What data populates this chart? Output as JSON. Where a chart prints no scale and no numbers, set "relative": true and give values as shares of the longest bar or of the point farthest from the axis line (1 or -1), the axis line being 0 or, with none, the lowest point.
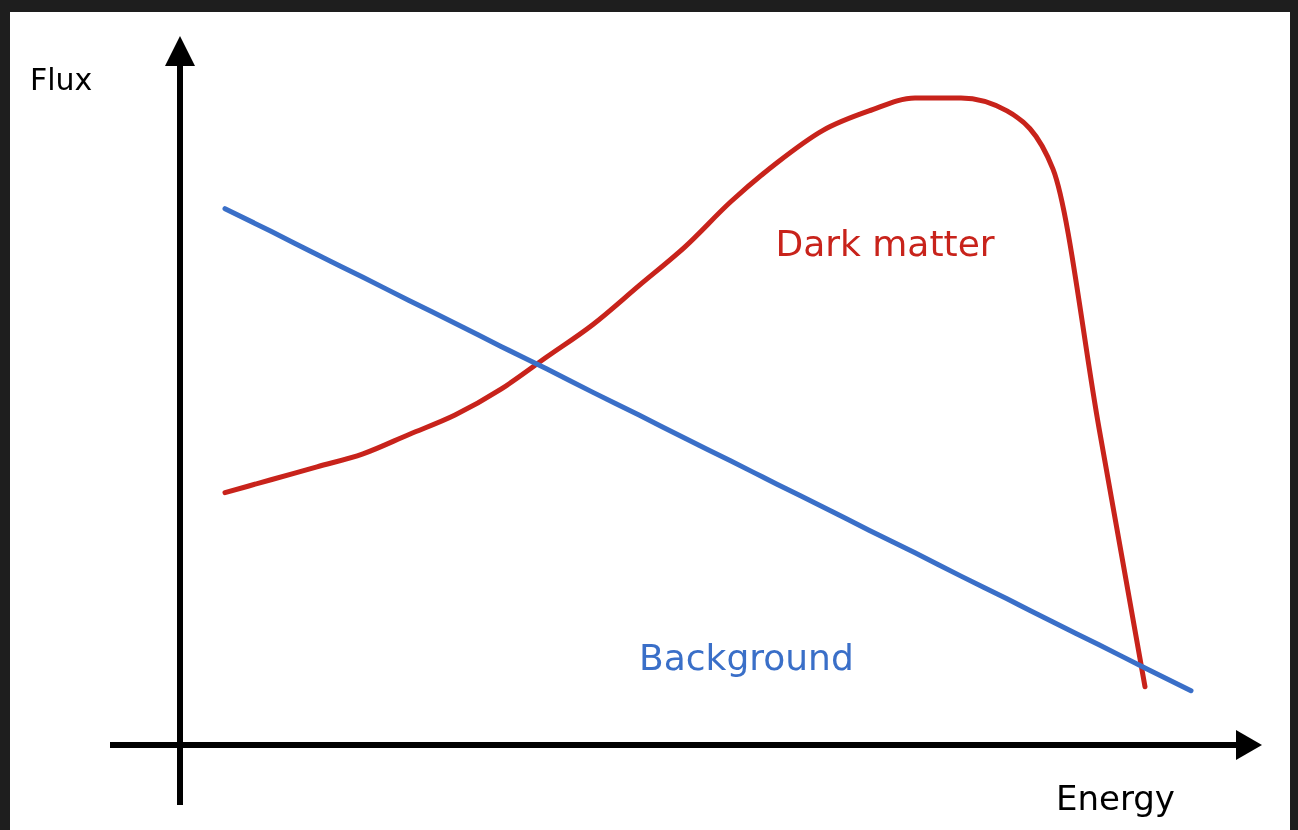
{
  "chart_data": {
    "type": "line",
    "relative": true,
    "xlabel": "Energy",
    "ylabel": "Flux",
    "categories": [
      null,
      null,
      null,
      null,
      null,
      null,
      null,
      null,
      null,
      null,
      null,
      null,
      null,
      null,
      null,
      null,
      null,
      null,
      null,
      null,
      null,
      null
    ],
    "series": [
      {
        "name": "Dark matter",
        "color": "#c8231b",
        "values": [
          0.39,
          0.41,
          0.43,
          0.45,
          0.48,
          0.51,
          0.55,
          0.6,
          0.65,
          0.71,
          0.77,
          0.84,
          0.9,
          0.95,
          0.98,
          1.0,
          1.0,
          0.98,
          0.89,
          0.49,
          0.09,
          null
        ]
      },
      {
        "name": "Background",
        "color": "#3a6fc8",
        "values": [
          0.829,
          0.794,
          0.758,
          0.723,
          0.687,
          0.652,
          0.616,
          0.581,
          0.545,
          0.51,
          0.474,
          0.439,
          0.403,
          0.368,
          0.332,
          0.297,
          0.261,
          0.226,
          0.19,
          0.155,
          0.119,
          0.084
        ]
      }
    ],
    "marker": "none",
    "line_style": "solid"
  }
}
